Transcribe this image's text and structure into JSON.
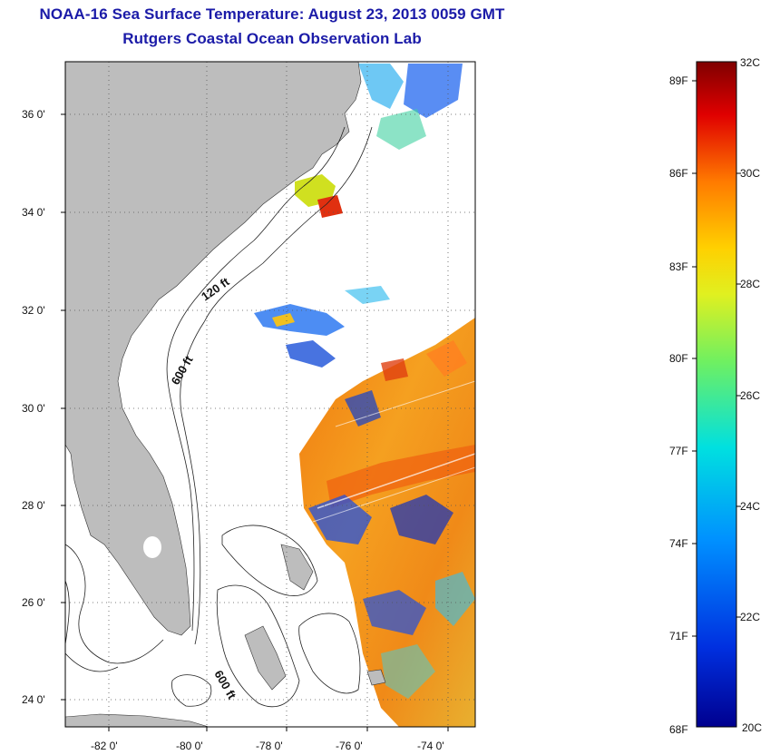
{
  "title_line1": "NOAA-16 Sea Surface Temperature:  August 23, 2013 0059 GMT",
  "title_line2": "Rutgers Coastal Ocean Observation Lab",
  "map": {
    "lat_labels": [
      "36 0'",
      "34 0'",
      "32 0'",
      "30 0'",
      "28 0'",
      "26 0'",
      "24 0'"
    ],
    "lon_labels": [
      "-82 0'",
      "-80 0'",
      "-78 0'",
      "-76 0'",
      "-74 0'"
    ],
    "contour_labels": [
      "120 ft",
      "600 ft",
      "600 ft"
    ],
    "land_color": "#bdbdbd",
    "grid": "dotted"
  },
  "colorbar": {
    "fahrenheit_labels": [
      "89F",
      "86F",
      "83F",
      "80F",
      "77F",
      "74F",
      "71F",
      "68F"
    ],
    "celsius_labels": [
      "32C",
      "30C",
      "28C",
      "26C",
      "24C",
      "22C",
      "20C"
    ],
    "colors": [
      "#7f0000",
      "#e00000",
      "#ff6a00",
      "#ffd700",
      "#c8f000",
      "#33e0a0",
      "#00c8e6",
      "#0050ff",
      "#00008f"
    ]
  }
}
